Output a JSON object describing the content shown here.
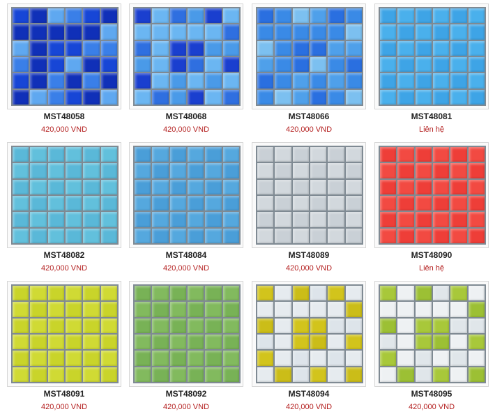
{
  "products": [
    {
      "code": "MST48058",
      "price": "420,000 VND",
      "pattern": "mix",
      "colors": [
        "#1746d6",
        "#3a7fe8",
        "#5fa8f0",
        "#1030b8"
      ]
    },
    {
      "code": "MST48068",
      "price": "420,000 VND",
      "pattern": "mix",
      "colors": [
        "#1a3fcf",
        "#4a9ae8",
        "#2f6fe0",
        "#6bb6f2"
      ]
    },
    {
      "code": "MST48066",
      "price": "420,000 VND",
      "pattern": "mix",
      "colors": [
        "#2a6fe0",
        "#4fa0ea",
        "#7cc0f0",
        "#3a8ae6"
      ]
    },
    {
      "code": "MST48081",
      "price": "Liên hệ",
      "pattern": "solid",
      "colors": [
        "#3ea4e6",
        "#4ab0ec"
      ]
    },
    {
      "code": "MST48082",
      "price": "420,000 VND",
      "pattern": "solid",
      "colors": [
        "#5ab8d8",
        "#62c0dc"
      ]
    },
    {
      "code": "MST48084",
      "price": "420,000 VND",
      "pattern": "solid",
      "colors": [
        "#4a9ed8",
        "#55a8de"
      ]
    },
    {
      "code": "MST48089",
      "price": "420,000 VND",
      "pattern": "solid",
      "colors": [
        "#c9d0d6",
        "#d2d8dd"
      ]
    },
    {
      "code": "MST48090",
      "price": "Liên hệ",
      "pattern": "solid",
      "colors": [
        "#ee3e38",
        "#f24a42"
      ]
    },
    {
      "code": "MST48091",
      "price": "420,000 VND",
      "pattern": "solid",
      "colors": [
        "#c9d42a",
        "#d0da34"
      ]
    },
    {
      "code": "MST48092",
      "price": "420,000 VND",
      "pattern": "solid",
      "colors": [
        "#78b256",
        "#82ba5e"
      ]
    },
    {
      "code": "MST48094",
      "price": "420,000 VND",
      "pattern": "mix",
      "colors": [
        "#d2c41c",
        "#dde4ea",
        "#cbbd18",
        "#e6ebef"
      ]
    },
    {
      "code": "MST48095",
      "price": "420,000 VND",
      "pattern": "mix",
      "colors": [
        "#a8c83a",
        "#e0e6ea",
        "#9cc034",
        "#eef1f3"
      ]
    }
  ]
}
